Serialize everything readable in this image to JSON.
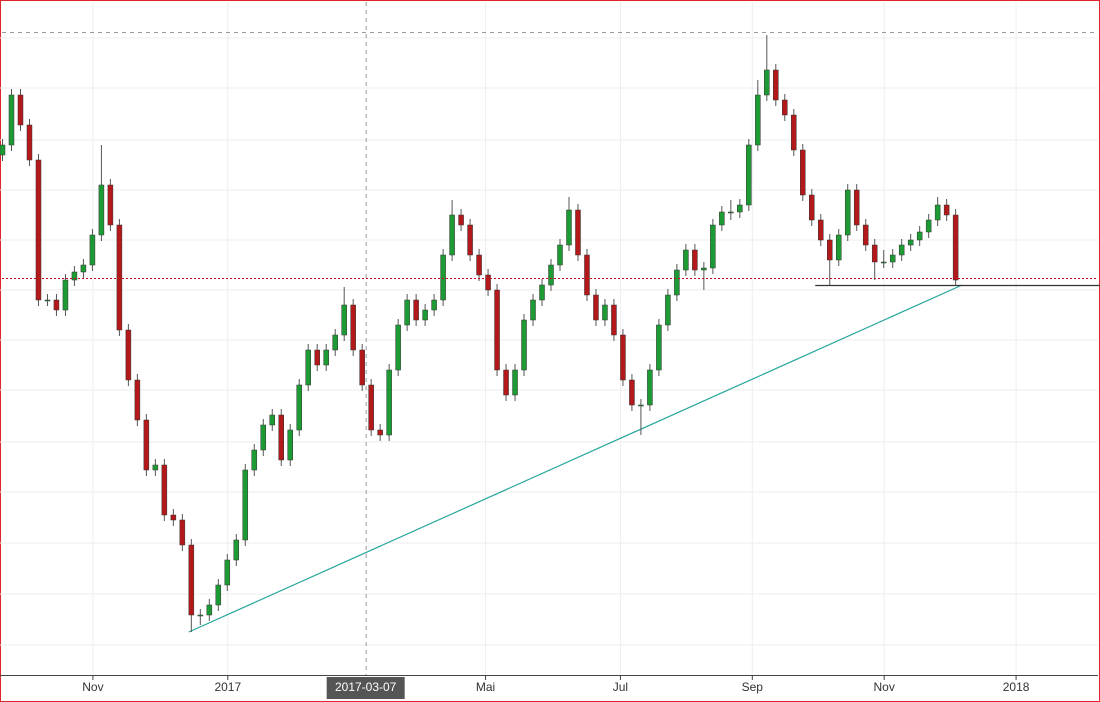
{
  "chart_data": {
    "type": "candlestick",
    "x": [
      0,
      3,
      6,
      9,
      12,
      15,
      18,
      21,
      24,
      27,
      30,
      33,
      36,
      39,
      42,
      45,
      48,
      51,
      54,
      57,
      60,
      63,
      66,
      69,
      72,
      75,
      78,
      81,
      84,
      87,
      90,
      93,
      96,
      99,
      102,
      105,
      108,
      111,
      114,
      117,
      120,
      123,
      126,
      129,
      132,
      135,
      138,
      141,
      144,
      147,
      150,
      153,
      156,
      159,
      162,
      165,
      168,
      171,
      174,
      177,
      180,
      183,
      186,
      189,
      192,
      195,
      198,
      201,
      204,
      207,
      210,
      213,
      216,
      219,
      222,
      225,
      228,
      231,
      234,
      237,
      240,
      243,
      246,
      249,
      252,
      255,
      258,
      261,
      264,
      267,
      270,
      273,
      276,
      279,
      282,
      285,
      288,
      291,
      294,
      297,
      300,
      303,
      306,
      309,
      312,
      315,
      318
    ],
    "open": [
      520,
      530,
      580,
      550,
      515,
      375,
      375,
      365,
      395,
      403,
      410,
      440,
      490,
      450,
      345,
      295,
      255,
      205,
      210,
      160,
      155,
      130,
      60,
      60,
      70,
      90,
      115,
      135,
      205,
      225,
      250,
      260,
      215,
      245,
      290,
      325,
      310,
      325,
      340,
      370,
      325,
      290,
      245,
      240,
      305,
      350,
      375,
      355,
      365,
      375,
      420,
      460,
      450,
      420,
      400,
      385,
      305,
      280,
      305,
      355,
      375,
      390,
      410,
      430,
      465,
      420,
      380,
      355,
      370,
      340,
      295,
      270,
      270,
      305,
      350,
      380,
      405,
      425,
      405,
      407,
      450,
      463,
      463,
      470,
      530,
      580,
      605,
      575,
      560,
      525,
      480,
      455,
      435,
      415,
      440,
      485,
      450,
      430,
      413,
      413,
      420,
      430,
      435,
      443,
      455,
      470,
      460
    ],
    "high": [
      536,
      586,
      586,
      556,
      521,
      381,
      381,
      401,
      409,
      416,
      446,
      530,
      496,
      456,
      351,
      301,
      261,
      216,
      216,
      166,
      161,
      136,
      66,
      76,
      96,
      121,
      141,
      211,
      231,
      256,
      266,
      266,
      251,
      296,
      331,
      331,
      331,
      346,
      388,
      376,
      331,
      296,
      251,
      311,
      356,
      381,
      381,
      371,
      381,
      426,
      475,
      466,
      456,
      426,
      406,
      391,
      311,
      311,
      361,
      381,
      396,
      416,
      436,
      478,
      471,
      426,
      386,
      376,
      376,
      346,
      301,
      276,
      311,
      356,
      386,
      411,
      431,
      431,
      413,
      456,
      469,
      475,
      476,
      536,
      595,
      640,
      611,
      581,
      566,
      531,
      486,
      461,
      441,
      446,
      491,
      491,
      456,
      436,
      425,
      426,
      436,
      441,
      449,
      461,
      478,
      476,
      466
    ],
    "low": [
      514,
      524,
      544,
      509,
      369,
      369,
      359,
      359,
      389,
      397,
      404,
      434,
      444,
      339,
      289,
      249,
      199,
      199,
      154,
      149,
      124,
      43,
      50,
      54,
      64,
      84,
      109,
      129,
      199,
      219,
      244,
      209,
      209,
      239,
      284,
      304,
      304,
      319,
      334,
      319,
      284,
      239,
      234,
      234,
      299,
      344,
      349,
      349,
      359,
      369,
      414,
      444,
      414,
      394,
      379,
      299,
      274,
      274,
      299,
      349,
      369,
      384,
      404,
      424,
      414,
      374,
      349,
      349,
      334,
      289,
      264,
      240,
      264,
      299,
      344,
      374,
      399,
      399,
      385,
      401,
      444,
      455,
      457,
      464,
      524,
      574,
      569,
      554,
      519,
      474,
      449,
      429,
      390,
      409,
      434,
      444,
      424,
      395,
      407,
      407,
      414,
      424,
      429,
      437,
      449,
      454,
      389
    ],
    "close": [
      530,
      580,
      550,
      515,
      375,
      375,
      365,
      395,
      403,
      410,
      440,
      490,
      450,
      345,
      295,
      255,
      205,
      210,
      160,
      155,
      130,
      60,
      60,
      70,
      90,
      115,
      135,
      205,
      225,
      250,
      260,
      215,
      245,
      290,
      325,
      310,
      325,
      340,
      370,
      325,
      290,
      245,
      240,
      305,
      350,
      375,
      355,
      365,
      375,
      420,
      460,
      450,
      420,
      400,
      385,
      305,
      280,
      305,
      355,
      375,
      390,
      410,
      430,
      465,
      420,
      380,
      355,
      370,
      340,
      295,
      270,
      270,
      305,
      350,
      380,
      405,
      425,
      405,
      407,
      450,
      463,
      463,
      470,
      530,
      580,
      605,
      575,
      560,
      525,
      480,
      455,
      435,
      415,
      440,
      485,
      450,
      430,
      413,
      413,
      420,
      430,
      435,
      443,
      455,
      470,
      460,
      395
    ],
    "up_color": "#1e9a34",
    "down_color": "#b3191b",
    "xlim": [
      0,
      367
    ],
    "ylim": [
      0,
      675
    ],
    "xticks": [
      {
        "value": 31,
        "label": "Nov"
      },
      {
        "value": 76,
        "label": "2017"
      },
      {
        "value": 162,
        "label": "Mai"
      },
      {
        "value": 207,
        "label": "Jul"
      },
      {
        "value": 251,
        "label": "Sep"
      },
      {
        "value": 295,
        "label": "Nov"
      },
      {
        "value": 339,
        "label": "2018"
      }
    ],
    "ygrid": [
      637,
      587,
      535,
      485,
      435,
      385,
      335,
      285,
      233,
      183,
      132,
      81,
      30
    ],
    "grid": true,
    "crosshair": {
      "x": 122,
      "y": 643,
      "label": "2017-03-07"
    },
    "last_price_line": {
      "value": 397,
      "color": "#d0021b"
    },
    "support_line": {
      "x": [
        272,
        367
      ],
      "value": 390,
      "color": "#333333"
    },
    "trendline": {
      "x": [
        63,
        321
      ],
      "y": [
        43,
        390
      ],
      "color": "#26a69a"
    }
  }
}
